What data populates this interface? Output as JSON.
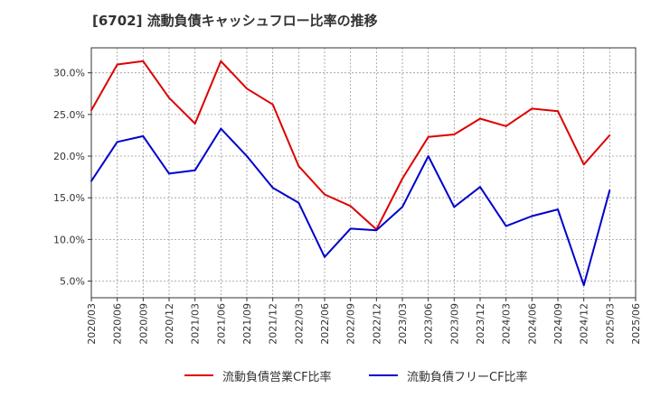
{
  "chart_data": {
    "type": "line",
    "title": "[6702]  流動負債キャッシュフロー比率の推移",
    "xlabel": "",
    "ylabel": "",
    "categories": [
      "2020/03",
      "2020/06",
      "2020/09",
      "2020/12",
      "2021/03",
      "2021/06",
      "2021/09",
      "2021/12",
      "2022/03",
      "2022/06",
      "2022/09",
      "2022/12",
      "2023/03",
      "2023/06",
      "2023/09",
      "2023/12",
      "2024/03",
      "2024/06",
      "2024/09",
      "2024/12",
      "2025/03",
      "2025/06"
    ],
    "ylim": [
      3.0,
      33.0
    ],
    "yticks": [
      5.0,
      10.0,
      15.0,
      20.0,
      25.0,
      30.0
    ],
    "ytick_labels": [
      "5.0%",
      "10.0%",
      "15.0%",
      "20.0%",
      "25.0%",
      "30.0%"
    ],
    "grid": true,
    "legend_position": "bottom",
    "series": [
      {
        "name": "流動負債営業CF比率",
        "color": "#dd0000",
        "values": [
          25.5,
          31.0,
          31.4,
          27.0,
          23.9,
          31.4,
          28.1,
          26.2,
          18.8,
          15.4,
          14.0,
          11.2,
          17.3,
          22.3,
          22.6,
          24.5,
          23.6,
          25.7,
          25.4,
          19.0,
          22.5,
          null
        ]
      },
      {
        "name": "流動負債フリーCF比率",
        "color": "#0000cc",
        "values": [
          17.0,
          21.7,
          22.4,
          17.9,
          18.3,
          23.3,
          20.0,
          16.2,
          14.4,
          7.9,
          11.3,
          11.1,
          13.9,
          20.0,
          13.9,
          16.3,
          11.6,
          12.8,
          13.6,
          4.5,
          15.9,
          null
        ]
      }
    ]
  }
}
